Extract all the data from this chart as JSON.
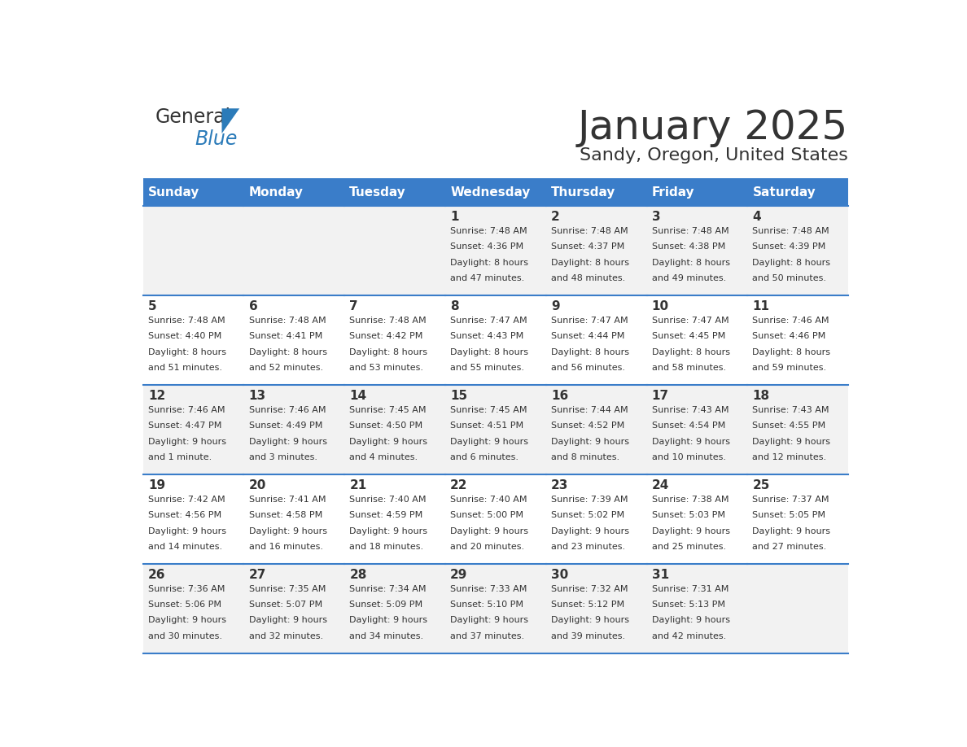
{
  "title": "January 2025",
  "subtitle": "Sandy, Oregon, United States",
  "header_color": "#3A7DC9",
  "header_text_color": "#FFFFFF",
  "cell_bg_odd": "#F2F2F2",
  "cell_bg_even": "#FFFFFF",
  "border_color": "#3A7DC9",
  "text_color": "#333333",
  "days_of_week": [
    "Sunday",
    "Monday",
    "Tuesday",
    "Wednesday",
    "Thursday",
    "Friday",
    "Saturday"
  ],
  "calendar": [
    [
      {
        "day": "",
        "sunrise": "",
        "sunset": "",
        "daylight": ""
      },
      {
        "day": "",
        "sunrise": "",
        "sunset": "",
        "daylight": ""
      },
      {
        "day": "",
        "sunrise": "",
        "sunset": "",
        "daylight": ""
      },
      {
        "day": "1",
        "sunrise": "7:48 AM",
        "sunset": "4:36 PM",
        "daylight": "8 hours and 47 minutes."
      },
      {
        "day": "2",
        "sunrise": "7:48 AM",
        "sunset": "4:37 PM",
        "daylight": "8 hours and 48 minutes."
      },
      {
        "day": "3",
        "sunrise": "7:48 AM",
        "sunset": "4:38 PM",
        "daylight": "8 hours and 49 minutes."
      },
      {
        "day": "4",
        "sunrise": "7:48 AM",
        "sunset": "4:39 PM",
        "daylight": "8 hours and 50 minutes."
      }
    ],
    [
      {
        "day": "5",
        "sunrise": "7:48 AM",
        "sunset": "4:40 PM",
        "daylight": "8 hours and 51 minutes."
      },
      {
        "day": "6",
        "sunrise": "7:48 AM",
        "sunset": "4:41 PM",
        "daylight": "8 hours and 52 minutes."
      },
      {
        "day": "7",
        "sunrise": "7:48 AM",
        "sunset": "4:42 PM",
        "daylight": "8 hours and 53 minutes."
      },
      {
        "day": "8",
        "sunrise": "7:47 AM",
        "sunset": "4:43 PM",
        "daylight": "8 hours and 55 minutes."
      },
      {
        "day": "9",
        "sunrise": "7:47 AM",
        "sunset": "4:44 PM",
        "daylight": "8 hours and 56 minutes."
      },
      {
        "day": "10",
        "sunrise": "7:47 AM",
        "sunset": "4:45 PM",
        "daylight": "8 hours and 58 minutes."
      },
      {
        "day": "11",
        "sunrise": "7:46 AM",
        "sunset": "4:46 PM",
        "daylight": "8 hours and 59 minutes."
      }
    ],
    [
      {
        "day": "12",
        "sunrise": "7:46 AM",
        "sunset": "4:47 PM",
        "daylight": "9 hours and 1 minute."
      },
      {
        "day": "13",
        "sunrise": "7:46 AM",
        "sunset": "4:49 PM",
        "daylight": "9 hours and 3 minutes."
      },
      {
        "day": "14",
        "sunrise": "7:45 AM",
        "sunset": "4:50 PM",
        "daylight": "9 hours and 4 minutes."
      },
      {
        "day": "15",
        "sunrise": "7:45 AM",
        "sunset": "4:51 PM",
        "daylight": "9 hours and 6 minutes."
      },
      {
        "day": "16",
        "sunrise": "7:44 AM",
        "sunset": "4:52 PM",
        "daylight": "9 hours and 8 minutes."
      },
      {
        "day": "17",
        "sunrise": "7:43 AM",
        "sunset": "4:54 PM",
        "daylight": "9 hours and 10 minutes."
      },
      {
        "day": "18",
        "sunrise": "7:43 AM",
        "sunset": "4:55 PM",
        "daylight": "9 hours and 12 minutes."
      }
    ],
    [
      {
        "day": "19",
        "sunrise": "7:42 AM",
        "sunset": "4:56 PM",
        "daylight": "9 hours and 14 minutes."
      },
      {
        "day": "20",
        "sunrise": "7:41 AM",
        "sunset": "4:58 PM",
        "daylight": "9 hours and 16 minutes."
      },
      {
        "day": "21",
        "sunrise": "7:40 AM",
        "sunset": "4:59 PM",
        "daylight": "9 hours and 18 minutes."
      },
      {
        "day": "22",
        "sunrise": "7:40 AM",
        "sunset": "5:00 PM",
        "daylight": "9 hours and 20 minutes."
      },
      {
        "day": "23",
        "sunrise": "7:39 AM",
        "sunset": "5:02 PM",
        "daylight": "9 hours and 23 minutes."
      },
      {
        "day": "24",
        "sunrise": "7:38 AM",
        "sunset": "5:03 PM",
        "daylight": "9 hours and 25 minutes."
      },
      {
        "day": "25",
        "sunrise": "7:37 AM",
        "sunset": "5:05 PM",
        "daylight": "9 hours and 27 minutes."
      }
    ],
    [
      {
        "day": "26",
        "sunrise": "7:36 AM",
        "sunset": "5:06 PM",
        "daylight": "9 hours and 30 minutes."
      },
      {
        "day": "27",
        "sunrise": "7:35 AM",
        "sunset": "5:07 PM",
        "daylight": "9 hours and 32 minutes."
      },
      {
        "day": "28",
        "sunrise": "7:34 AM",
        "sunset": "5:09 PM",
        "daylight": "9 hours and 34 minutes."
      },
      {
        "day": "29",
        "sunrise": "7:33 AM",
        "sunset": "5:10 PM",
        "daylight": "9 hours and 37 minutes."
      },
      {
        "day": "30",
        "sunrise": "7:32 AM",
        "sunset": "5:12 PM",
        "daylight": "9 hours and 39 minutes."
      },
      {
        "day": "31",
        "sunrise": "7:31 AM",
        "sunset": "5:13 PM",
        "daylight": "9 hours and 42 minutes."
      },
      {
        "day": "",
        "sunrise": "",
        "sunset": "",
        "daylight": ""
      }
    ]
  ],
  "logo_general_color": "#333333",
  "logo_blue_color": "#2B7BB9",
  "triangle_color": "#2B7BB9",
  "title_fontsize": 36,
  "subtitle_fontsize": 16,
  "header_fontsize": 11,
  "day_num_fontsize": 11,
  "cell_text_fontsize": 8
}
